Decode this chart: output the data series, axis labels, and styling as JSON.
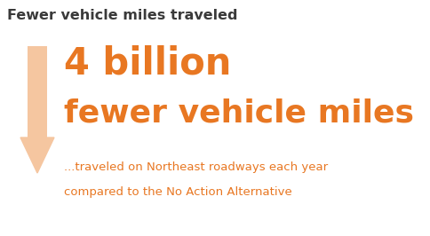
{
  "title": "Fewer vehicle miles traveled",
  "title_color": "#3a3a3a",
  "title_fontsize": 11.5,
  "title_fontweight": "bold",
  "big_text_line1": "4 billion",
  "big_text_line2": "fewer vehicle miles",
  "big_text_color": "#E87722",
  "big_text_fontsize_line1": 30,
  "big_text_fontsize_line2": 26,
  "sub_text_line1": "...traveled on Northeast roadways each year",
  "sub_text_line2": "compared to the No Action Alternative",
  "sub_text_color": "#E87722",
  "sub_text_fontsize": 9.5,
  "arrow_color": "#F5C6A0",
  "background_color": "#ffffff",
  "fig_width": 4.85,
  "fig_height": 2.66,
  "dpi": 100
}
